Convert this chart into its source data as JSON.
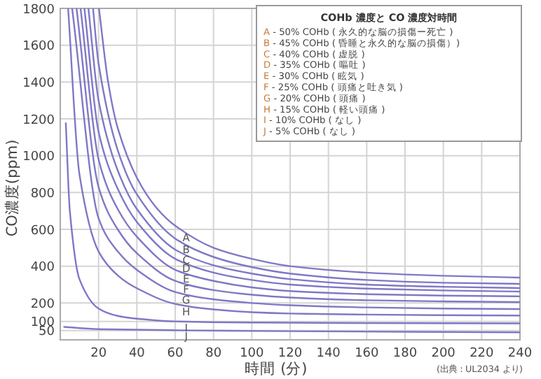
{
  "chart_data": {
    "type": "line",
    "xlabel": "時間 (分)",
    "ylabel": "CO濃度(ppm)",
    "legend_title": "COHb 濃度と CO 濃度対時間",
    "annotations": [
      "A - 50% COHb ( 永久的な脳の損傷ー死亡 )",
      "B - 45% COHb ( 昏睡と永久的な脳の損傷）)",
      "C - 40% COHb ( 虚脱 )",
      "D - 35% COHb ( 嘔吐 )",
      "E - 30% COHb ( 眩気 )",
      "F - 25% COHb ( 頭痛と吐き気 )",
      "G - 20% COHb ( 頭痛 )",
      "H - 15% COHb ( 軽い頭痛 )",
      "I - 10% COHb ( なし )",
      "J -  5% COHb ( なし )",
      "(出典：UL2034 より)"
    ],
    "xlim": [
      0,
      240
    ],
    "xticks": [
      20,
      40,
      60,
      80,
      100,
      120,
      140,
      160,
      180,
      200,
      220,
      240
    ],
    "ylim": [
      0,
      1800
    ],
    "yticks": [
      50,
      100,
      200,
      400,
      600,
      800,
      1000,
      1200,
      1400,
      1600,
      1800
    ],
    "grid": true,
    "series": [
      {
        "name": "A",
        "color": "#7f78c6",
        "x": [
          20.2,
          25,
          30,
          40,
          50,
          60,
          80,
          100,
          120,
          160,
          200,
          240
        ],
        "values": [
          1800,
          1400,
          1150,
          880,
          720,
          620,
          500,
          440,
          400,
          365,
          348,
          338
        ]
      },
      {
        "name": "B",
        "color": "#7f78c6",
        "x": [
          17.1,
          20,
          30,
          40,
          60,
          80,
          100,
          120,
          160,
          200,
          240
        ],
        "values": [
          1800,
          1500,
          1030,
          790,
          550,
          450,
          395,
          360,
          325,
          310,
          304
        ]
      },
      {
        "name": "C",
        "color": "#7f78c6",
        "x": [
          14.7,
          20,
          30,
          40,
          60,
          80,
          100,
          120,
          160,
          200,
          240
        ],
        "values": [
          1800,
          1300,
          920,
          710,
          490,
          405,
          360,
          330,
          300,
          288,
          281
        ]
      },
      {
        "name": "D",
        "color": "#7f78c6",
        "x": [
          12.6,
          20,
          30,
          40,
          60,
          80,
          100,
          120,
          160,
          200,
          240
        ],
        "values": [
          1800,
          1130,
          820,
          640,
          440,
          365,
          325,
          300,
          278,
          268,
          262
        ]
      },
      {
        "name": "E",
        "color": "#7f78c6",
        "x": [
          10.6,
          20,
          30,
          40,
          60,
          80,
          100,
          120,
          160,
          200,
          240
        ],
        "values": [
          1800,
          980,
          710,
          560,
          380,
          320,
          285,
          265,
          248,
          240,
          236
        ]
      },
      {
        "name": "F",
        "color": "#7f78c6",
        "x": [
          8.5,
          20,
          30,
          40,
          60,
          80,
          100,
          120,
          160,
          200,
          240
        ],
        "values": [
          1800,
          830,
          600,
          470,
          320,
          270,
          245,
          230,
          215,
          209,
          205
        ]
      },
      {
        "name": "G",
        "color": "#7f78c6",
        "x": [
          6.2,
          20,
          30,
          40,
          60,
          80,
          100,
          120,
          160,
          200,
          240
        ],
        "values": [
          1800,
          660,
          480,
          380,
          260,
          220,
          200,
          188,
          176,
          170,
          167
        ]
      },
      {
        "name": "H",
        "color": "#7f78c6",
        "x": [
          4.1,
          10,
          20,
          30,
          40,
          60,
          80,
          100,
          120,
          160,
          200,
          240
        ],
        "values": [
          1800,
          900,
          480,
          350,
          280,
          195,
          165,
          150,
          143,
          137,
          134,
          132
        ]
      },
      {
        "name": "I",
        "color": "#7f78c6",
        "x": [
          2.9,
          5,
          10,
          20,
          30,
          40,
          60,
          100,
          160,
          240
        ],
        "values": [
          1176,
          700,
          330,
          170,
          130,
          115,
          100,
          94,
          91,
          89
        ]
      },
      {
        "name": "J",
        "color": "#7f78c6",
        "x": [
          2,
          20,
          60,
          120,
          240
        ],
        "values": [
          70,
          58,
          52,
          47,
          41
        ]
      }
    ]
  }
}
